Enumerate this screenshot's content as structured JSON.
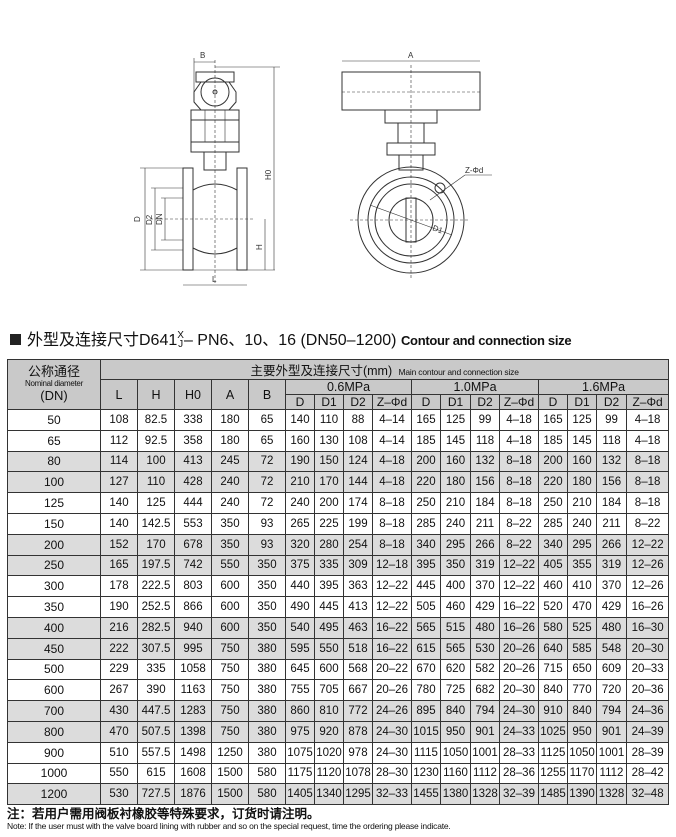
{
  "drawing": {
    "labels": {
      "B": "B",
      "A": "A",
      "H0": "H0",
      "D": "D",
      "D2": "D2",
      "DN": "DN",
      "H": "H",
      "L": "L",
      "Z": "Z-Φd",
      "D1": "D1"
    }
  },
  "title": {
    "cn_prefix": "外型及连接尺寸D641",
    "frac_top": "X",
    "frac_bottom": "J",
    "cn_suffix": "– PN6、10、16 (DN50–1200)",
    "en": "Contour and connection size"
  },
  "table": {
    "dn_header_cn": "公称通径",
    "dn_header_en": "Nominal diameter",
    "dn_header_unit": "(DN)",
    "main_header_cn": "主要外型及连接尺寸(mm)",
    "main_header_en": "Main contour and connection size",
    "basic_columns": [
      "L",
      "H",
      "H0",
      "A",
      "B"
    ],
    "pressure_groups": [
      "0.6MPa",
      "1.0MPa",
      "1.6MPa"
    ],
    "sub_columns": [
      "D",
      "D1",
      "D2",
      "Z–Φd"
    ],
    "rows": [
      {
        "dn": "50",
        "shade": false,
        "v": [
          "108",
          "82.5",
          "338",
          "180",
          "65",
          "140",
          "110",
          "88",
          "4–14",
          "165",
          "125",
          "99",
          "4–18",
          "165",
          "125",
          "99",
          "4–18"
        ]
      },
      {
        "dn": "65",
        "shade": false,
        "v": [
          "112",
          "92.5",
          "358",
          "180",
          "65",
          "160",
          "130",
          "108",
          "4–14",
          "185",
          "145",
          "118",
          "4–18",
          "185",
          "145",
          "118",
          "4–18"
        ]
      },
      {
        "dn": "80",
        "shade": true,
        "v": [
          "114",
          "100",
          "413",
          "245",
          "72",
          "190",
          "150",
          "124",
          "4–18",
          "200",
          "160",
          "132",
          "8–18",
          "200",
          "160",
          "132",
          "8–18"
        ]
      },
      {
        "dn": "100",
        "shade": true,
        "v": [
          "127",
          "110",
          "428",
          "240",
          "72",
          "210",
          "170",
          "144",
          "4–18",
          "220",
          "180",
          "156",
          "8–18",
          "220",
          "180",
          "156",
          "8–18"
        ]
      },
      {
        "dn": "125",
        "shade": false,
        "v": [
          "140",
          "125",
          "444",
          "240",
          "72",
          "240",
          "200",
          "174",
          "8–18",
          "250",
          "210",
          "184",
          "8–18",
          "250",
          "210",
          "184",
          "8–18"
        ]
      },
      {
        "dn": "150",
        "shade": false,
        "v": [
          "140",
          "142.5",
          "553",
          "350",
          "93",
          "265",
          "225",
          "199",
          "8–18",
          "285",
          "240",
          "211",
          "8–22",
          "285",
          "240",
          "211",
          "8–22"
        ]
      },
      {
        "dn": "200",
        "shade": true,
        "v": [
          "152",
          "170",
          "678",
          "350",
          "93",
          "320",
          "280",
          "254",
          "8–18",
          "340",
          "295",
          "266",
          "8–22",
          "340",
          "295",
          "266",
          "12–22"
        ]
      },
      {
        "dn": "250",
        "shade": true,
        "v": [
          "165",
          "197.5",
          "742",
          "550",
          "350",
          "375",
          "335",
          "309",
          "12–18",
          "395",
          "350",
          "319",
          "12–22",
          "405",
          "355",
          "319",
          "12–26"
        ]
      },
      {
        "dn": "300",
        "shade": false,
        "v": [
          "178",
          "222.5",
          "803",
          "600",
          "350",
          "440",
          "395",
          "363",
          "12–22",
          "445",
          "400",
          "370",
          "12–22",
          "460",
          "410",
          "370",
          "12–26"
        ]
      },
      {
        "dn": "350",
        "shade": false,
        "v": [
          "190",
          "252.5",
          "866",
          "600",
          "350",
          "490",
          "445",
          "413",
          "12–22",
          "505",
          "460",
          "429",
          "16–22",
          "520",
          "470",
          "429",
          "16–26"
        ]
      },
      {
        "dn": "400",
        "shade": true,
        "v": [
          "216",
          "282.5",
          "940",
          "600",
          "350",
          "540",
          "495",
          "463",
          "16–22",
          "565",
          "515",
          "480",
          "16–26",
          "580",
          "525",
          "480",
          "16–30"
        ]
      },
      {
        "dn": "450",
        "shade": true,
        "v": [
          "222",
          "307.5",
          "995",
          "750",
          "380",
          "595",
          "550",
          "518",
          "16–22",
          "615",
          "565",
          "530",
          "20–26",
          "640",
          "585",
          "548",
          "20–30"
        ]
      },
      {
        "dn": "500",
        "shade": false,
        "v": [
          "229",
          "335",
          "1058",
          "750",
          "380",
          "645",
          "600",
          "568",
          "20–22",
          "670",
          "620",
          "582",
          "20–26",
          "715",
          "650",
          "609",
          "20–33"
        ]
      },
      {
        "dn": "600",
        "shade": false,
        "v": [
          "267",
          "390",
          "1163",
          "750",
          "380",
          "755",
          "705",
          "667",
          "20–26",
          "780",
          "725",
          "682",
          "20–30",
          "840",
          "770",
          "720",
          "20–36"
        ]
      },
      {
        "dn": "700",
        "shade": true,
        "v": [
          "430",
          "447.5",
          "1283",
          "750",
          "380",
          "860",
          "810",
          "772",
          "24–26",
          "895",
          "840",
          "794",
          "24–30",
          "910",
          "840",
          "794",
          "24–36"
        ]
      },
      {
        "dn": "800",
        "shade": true,
        "v": [
          "470",
          "507.5",
          "1398",
          "750",
          "380",
          "975",
          "920",
          "878",
          "24–30",
          "1015",
          "950",
          "901",
          "24–33",
          "1025",
          "950",
          "901",
          "24–39"
        ]
      },
      {
        "dn": "900",
        "shade": false,
        "v": [
          "510",
          "557.5",
          "1498",
          "1250",
          "380",
          "1075",
          "1020",
          "978",
          "24–30",
          "1115",
          "1050",
          "1001",
          "28–33",
          "1125",
          "1050",
          "1001",
          "28–39"
        ]
      },
      {
        "dn": "1000",
        "shade": false,
        "v": [
          "550",
          "615",
          "1608",
          "1500",
          "580",
          "1175",
          "1120",
          "1078",
          "28–30",
          "1230",
          "1160",
          "1112",
          "28–36",
          "1255",
          "1170",
          "1112",
          "28–42"
        ]
      },
      {
        "dn": "1200",
        "shade": true,
        "v": [
          "530",
          "727.5",
          "1876",
          "1500",
          "580",
          "1405",
          "1340",
          "1295",
          "32–33",
          "1455",
          "1380",
          "1328",
          "32–39",
          "1485",
          "1390",
          "1328",
          "32–48"
        ]
      }
    ]
  },
  "note": {
    "cn": "注：若用户需用阀板衬橡胶等特殊要求，订货时请注明。",
    "en": "Note: If the user must with the valve board lining with rubber and so on the special request, time the ordering please indicate."
  }
}
